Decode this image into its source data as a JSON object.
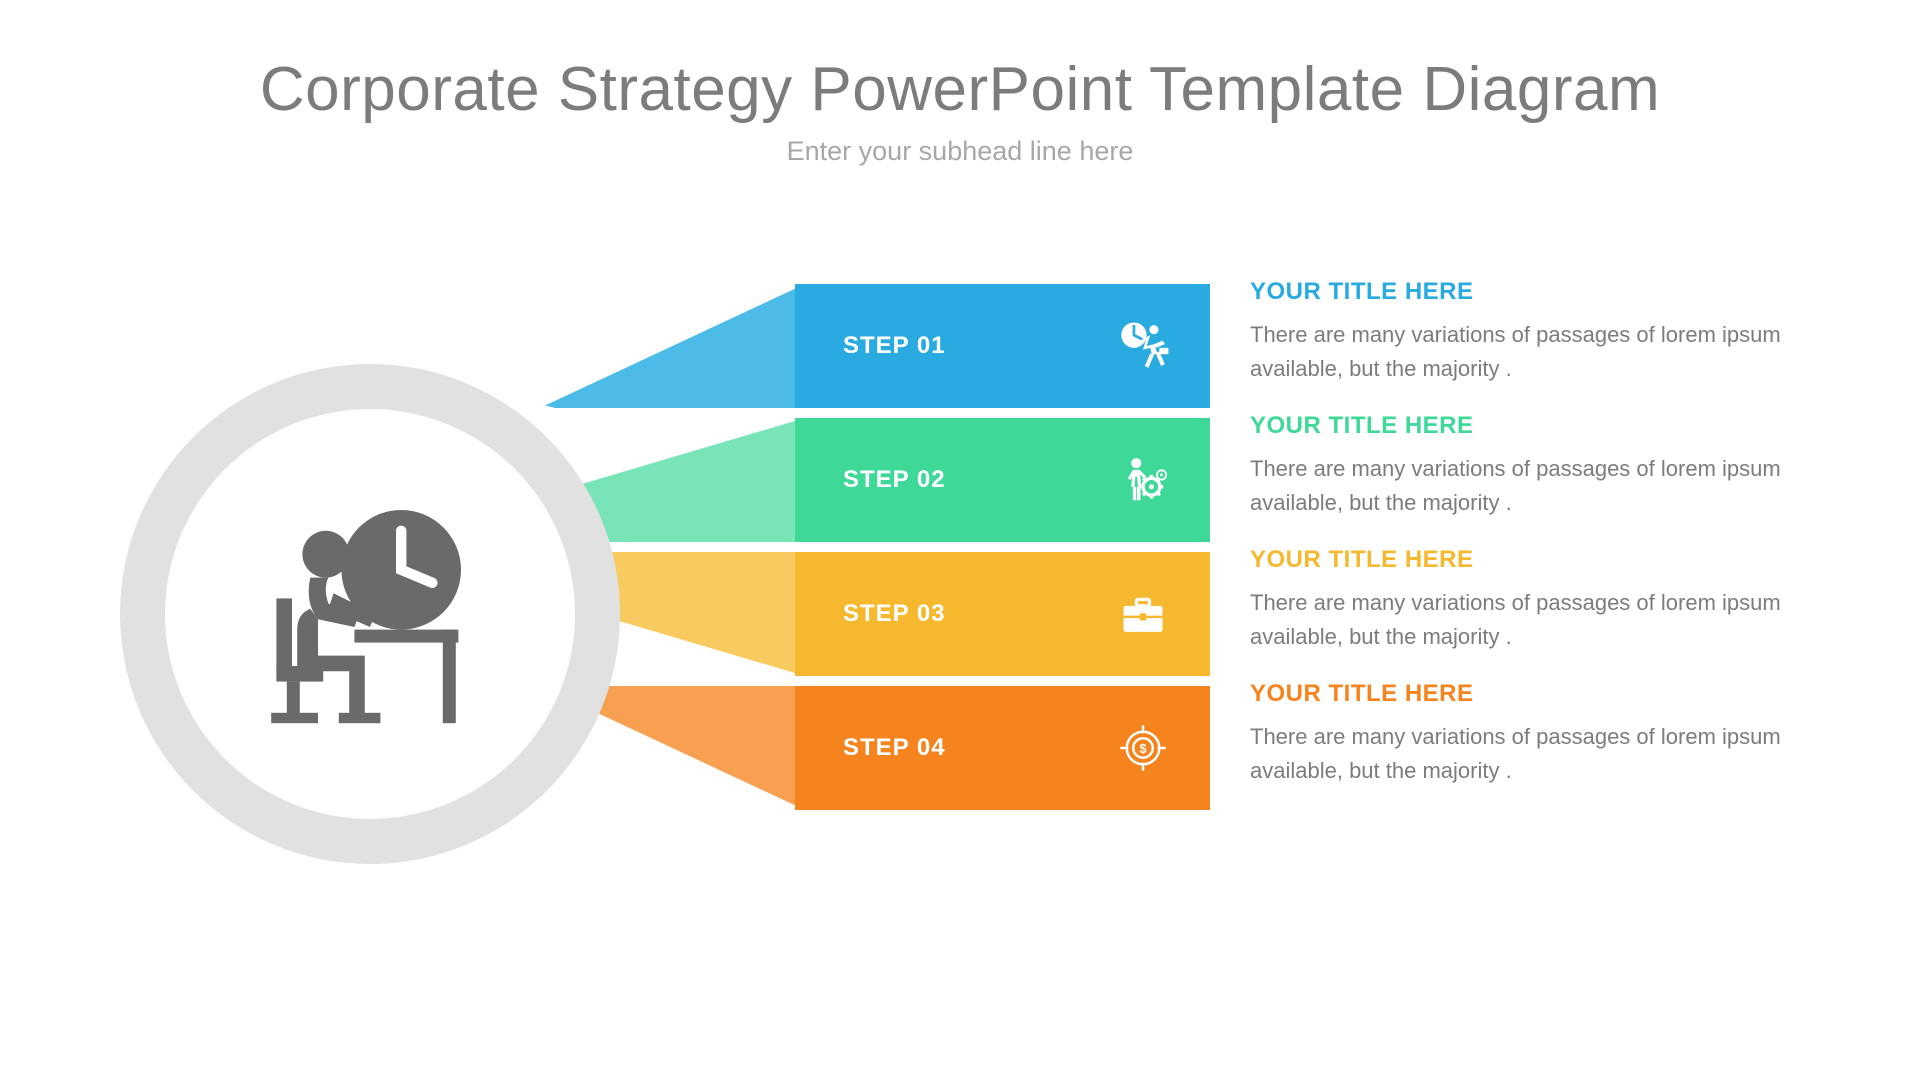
{
  "header": {
    "title": "Corporate Strategy PowerPoint Template Diagram",
    "subtitle": "Enter your subhead line here",
    "title_color": "#7c7c7c",
    "subtitle_color": "#a7a7a7"
  },
  "hub": {
    "outer_ring_color": "#e1e1e1",
    "inner_bg": "#ffffff",
    "icon_color": "#6a6a6a",
    "icon_name": "person-at-desk-clock"
  },
  "body_text_color": "#7c7c7c",
  "steps": [
    {
      "label": "STEP 01",
      "bar_color": "#29abe2",
      "connector_color": "#4cbbe8",
      "title": "YOUR TITLE HERE",
      "title_color": "#29abe2",
      "desc": "There are many variations of passages of lorem ipsum available, but the majority .",
      "icon": "running-clock-icon"
    },
    {
      "label": "STEP 02",
      "bar_color": "#3ed999",
      "connector_color": "#78e4b7",
      "title": "YOUR TITLE HERE",
      "title_color": "#3ed999",
      "desc": "There are many variations of passages of lorem ipsum available, but the majority .",
      "icon": "worker-gear-icon"
    },
    {
      "label": "STEP 03",
      "bar_color": "#f5b82e",
      "connector_color": "#f8cb61",
      "title": "YOUR TITLE HERE",
      "title_color": "#f5b82e",
      "desc": "There are many variations of passages of lorem ipsum available, but the majority .",
      "icon": "briefcase-icon"
    },
    {
      "label": "STEP 04",
      "bar_color": "#f5841f",
      "connector_color": "#f7a052",
      "title": "YOUR TITLE HERE",
      "title_color": "#f5841f",
      "desc": "There are many variations of passages of lorem ipsum available, but the majority .",
      "icon": "target-dollar-icon"
    }
  ],
  "layout": {
    "type": "infographic",
    "step_bar_width": 415,
    "step_bar_height": 124,
    "step_gap": 10,
    "hub_outer_diameter": 500,
    "hub_ring_thickness": 45,
    "connector_width": 260,
    "title_fontsize": 62,
    "subtitle_fontsize": 27,
    "step_label_fontsize": 24,
    "item_title_fontsize": 24,
    "item_desc_fontsize": 22,
    "background_color": "#ffffff"
  }
}
